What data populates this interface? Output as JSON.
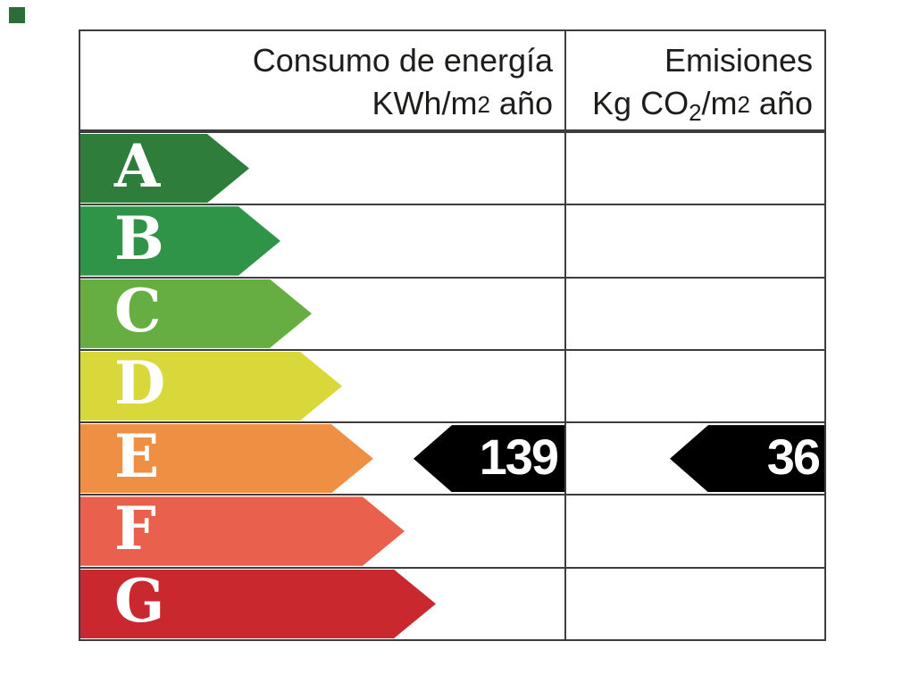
{
  "decor": {
    "corner_mark_color": "#2b6d36"
  },
  "header": {
    "left": {
      "line1": "Consumo de energía",
      "line2_pre": "KWh/m",
      "line2_exp": "2",
      "line2_post": " año"
    },
    "right": {
      "line1": "Emisiones",
      "line2_pre": "Kg CO",
      "line2_sub": "2",
      "line2_mid": "/m",
      "line2_exp": "2",
      "line2_post": " año"
    }
  },
  "ratings": [
    {
      "letter": "A",
      "color": "#2f7d3b"
    },
    {
      "letter": "B",
      "color": "#2f9447"
    },
    {
      "letter": "C",
      "color": "#66ae42"
    },
    {
      "letter": "D",
      "color": "#d8d83a"
    },
    {
      "letter": "E",
      "color": "#ee8f44"
    },
    {
      "letter": "F",
      "color": "#e9614c"
    },
    {
      "letter": "G",
      "color": "#c9292e"
    }
  ],
  "values": {
    "consumption": "139",
    "emissions": "36",
    "arrow_color": "#000000"
  },
  "chart_data": {
    "type": "bar",
    "subtype": "energy-efficiency-rating-label",
    "title": "",
    "columns": [
      {
        "header": "Consumo de energía KWh/m2 año",
        "value": 139,
        "rating": "E"
      },
      {
        "header": "Emisiones Kg CO2/m2 año",
        "value": 36,
        "rating": "E"
      }
    ],
    "categories": [
      "A",
      "B",
      "C",
      "D",
      "E",
      "F",
      "G"
    ],
    "bar_colors": [
      "#2f7d3b",
      "#2f9447",
      "#66ae42",
      "#d8d83a",
      "#ee8f44",
      "#e9614c",
      "#c9292e"
    ],
    "highlighted_row": "E",
    "value_arrow_color": "#000000",
    "legend_position": "none",
    "grid": "table-lines"
  }
}
